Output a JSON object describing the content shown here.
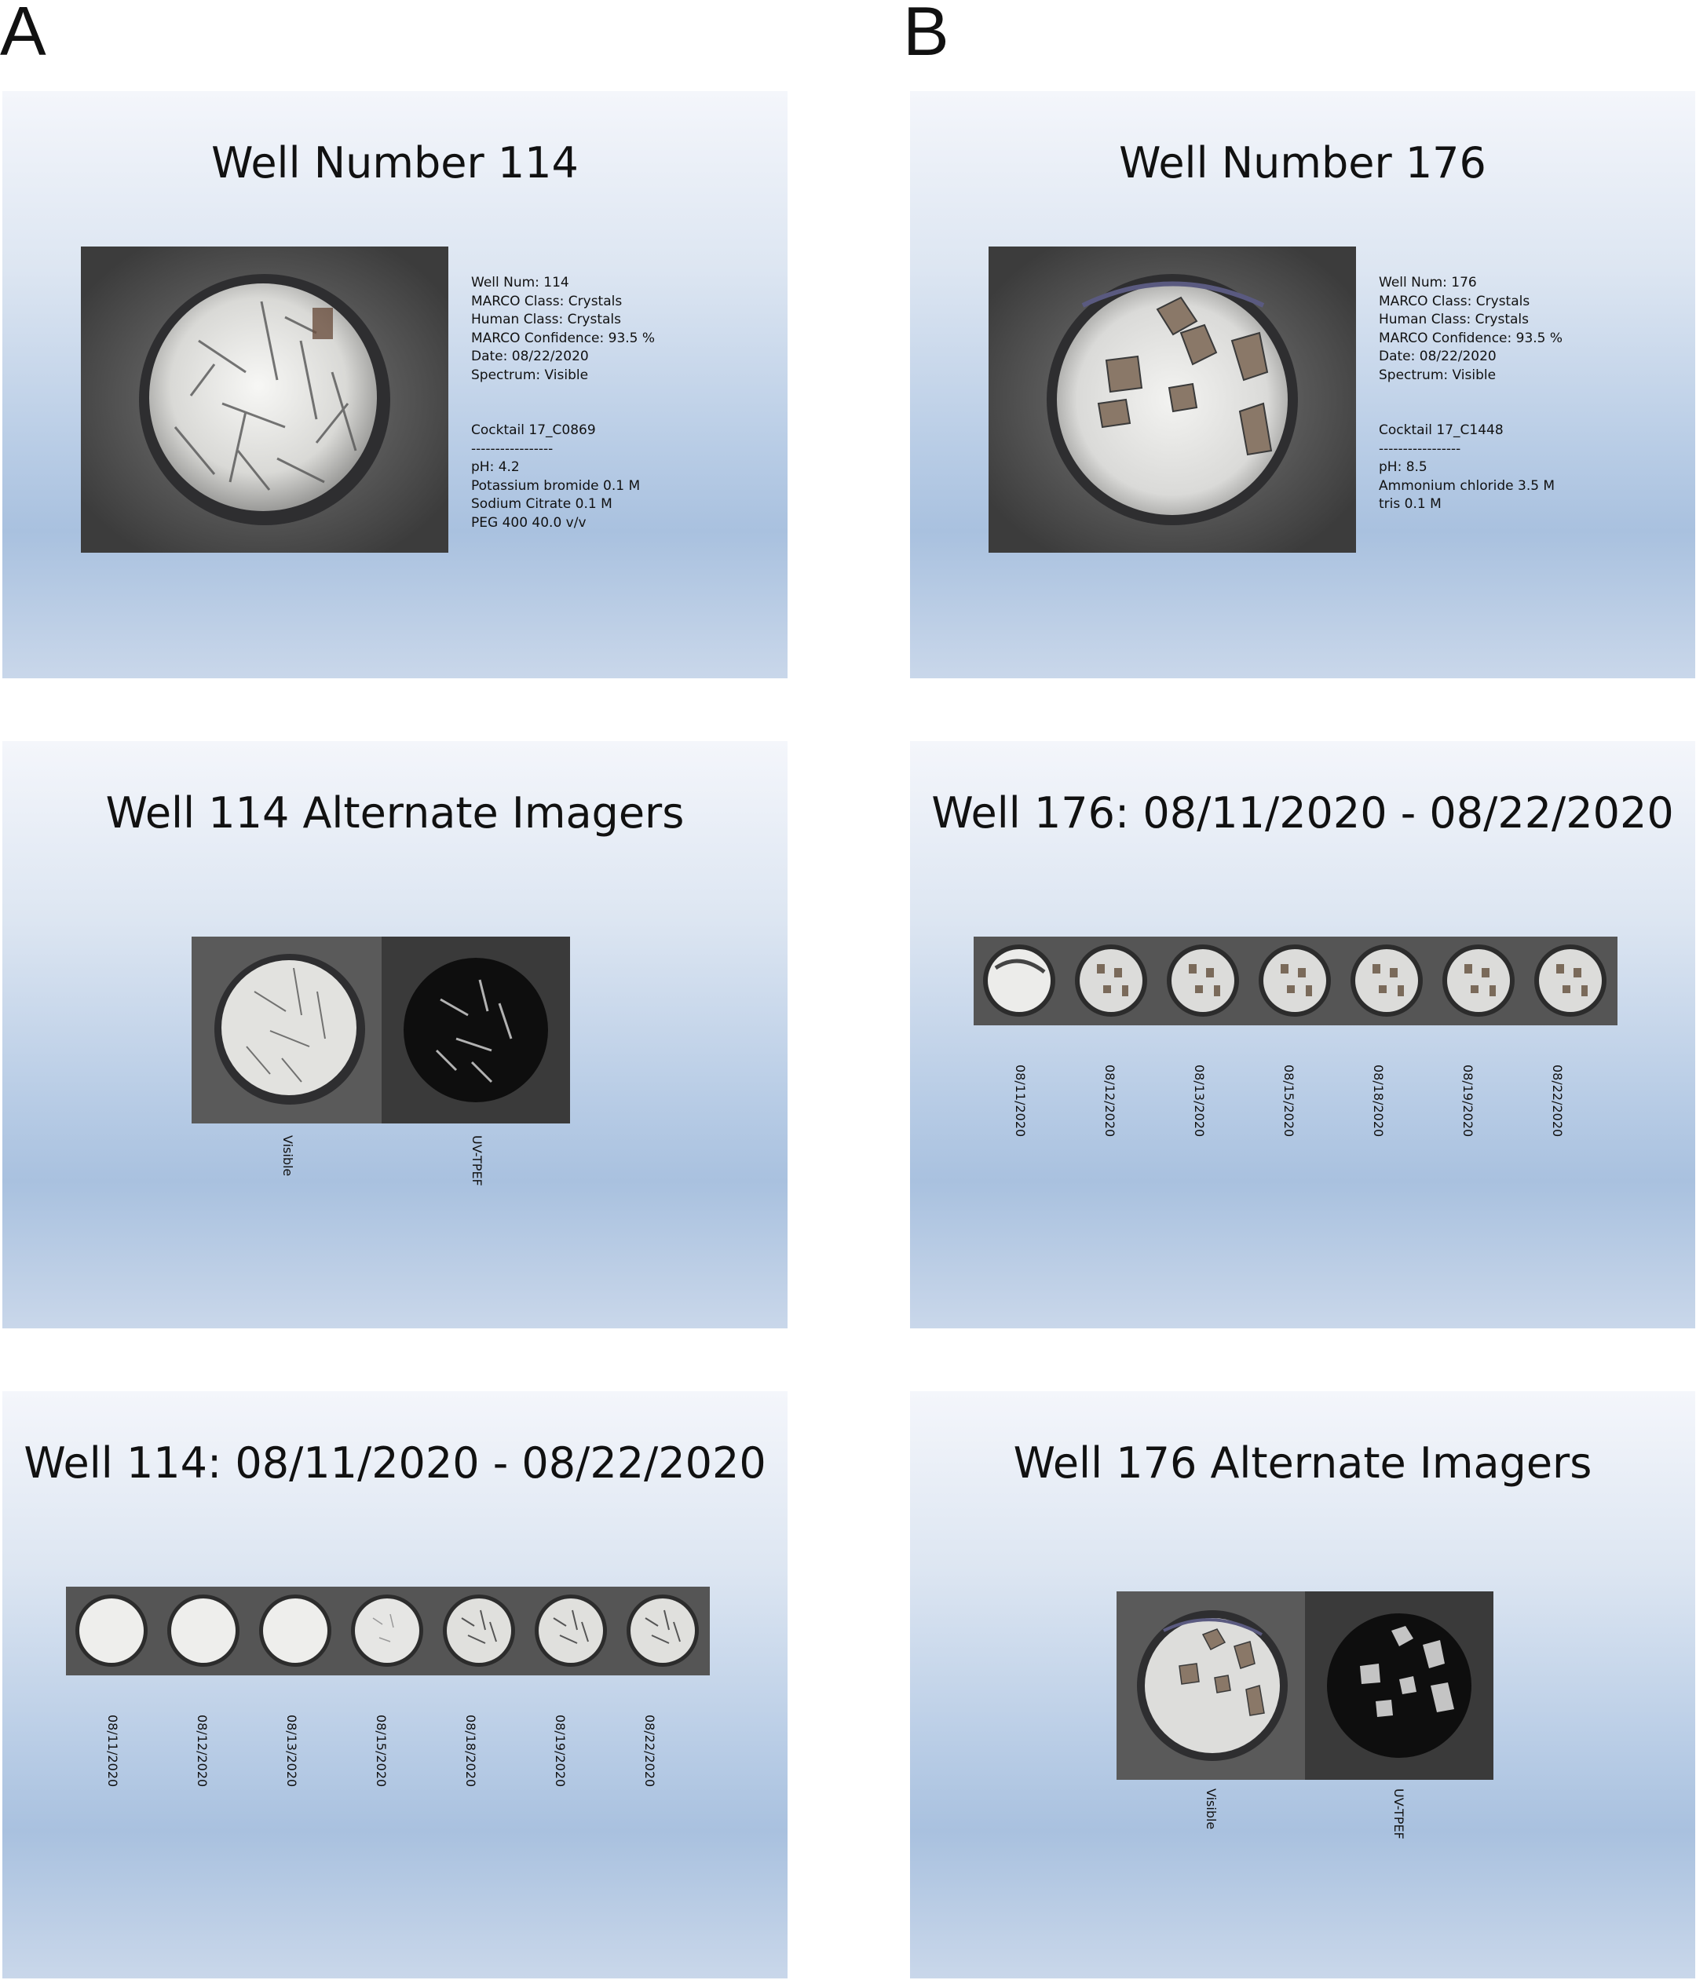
{
  "panels": {
    "a": "A",
    "b": "B"
  },
  "slide_a1": {
    "title": "Well Number 114",
    "details": "Well Num: 114\nMARCO Class: Crystals\nHuman Class: Crystals\nMARCO Confidence: 93.5 %\nDate: 08/22/2020\nSpectrum: Visible",
    "cocktail": "Cocktail 17_C0869\n-----------------\npH: 4.2\nPotassium bromide 0.1 M\nSodium Citrate 0.1 M\nPEG 400 40.0 v/v"
  },
  "slide_b1": {
    "title": "Well Number 176",
    "details": "Well Num: 176\nMARCO Class: Crystals\nHuman Class: Crystals\nMARCO Confidence: 93.5 %\nDate: 08/22/2020\nSpectrum: Visible",
    "cocktail": "Cocktail 17_C1448\n-----------------\npH: 8.5\nAmmonium chloride 3.5 M\ntris 0.1 M"
  },
  "slide_a2": {
    "title": "Well 114 Alternate Imagers",
    "labels": [
      "Visible",
      "UV-TPEF"
    ]
  },
  "slide_b2": {
    "title": "Well 176: 08/11/2020 - 08/22/2020",
    "dates": [
      "08/11/2020",
      "08/12/2020",
      "08/13/2020",
      "08/15/2020",
      "08/18/2020",
      "08/19/2020",
      "08/22/2020"
    ]
  },
  "slide_a3": {
    "title": "Well 114: 08/11/2020 - 08/22/2020",
    "dates": [
      "08/11/2020",
      "08/12/2020",
      "08/13/2020",
      "08/15/2020",
      "08/18/2020",
      "08/19/2020",
      "08/22/2020"
    ]
  },
  "slide_b3": {
    "title": "Well 176 Alternate Imagers",
    "labels": [
      "Visible",
      "UV-TPEF"
    ]
  },
  "colors": {
    "slide_top": "#f4f6fb",
    "slide_mid": "#b9cde6",
    "well_ring": "#4a4a4a",
    "drop": "#e8e8e6"
  }
}
